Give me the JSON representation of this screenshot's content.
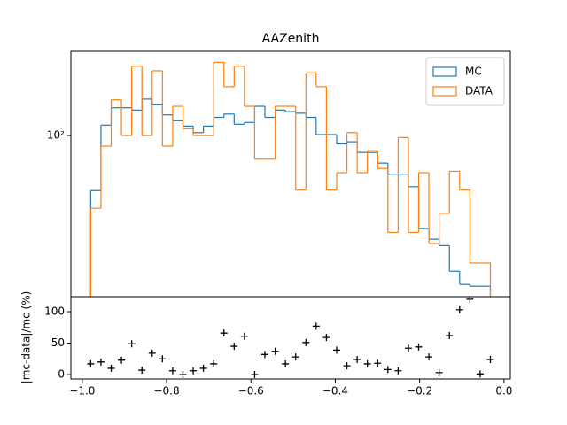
{
  "chart_data": [
    {
      "type": "histogram",
      "title": "AAZenith",
      "bins": [
        -0.98,
        -0.9557,
        -0.9314,
        -0.9071,
        -0.8828,
        -0.8585,
        -0.8342,
        -0.8099,
        -0.7856,
        -0.7613,
        -0.737,
        -0.7127,
        -0.6884,
        -0.6641,
        -0.6398,
        -0.6155,
        -0.5912,
        -0.5669,
        -0.5426,
        -0.5183,
        -0.494,
        -0.4697,
        -0.4454,
        -0.4211,
        -0.3968,
        -0.3725,
        -0.3482,
        -0.3239,
        -0.2996,
        -0.2753,
        -0.251,
        -0.2267,
        -0.2024,
        -0.1781,
        -0.1538,
        -0.1295,
        -0.1052,
        -0.0809,
        -0.0566,
        -0.0323
      ],
      "series": [
        {
          "name": "MC",
          "color": "#1f77b4",
          "values": [
            57.7,
            111,
            132,
            132,
            129,
            144,
            136,
            123,
            116,
            110,
            103,
            110,
            120,
            124,
            112,
            114,
            134,
            120,
            129,
            127,
            125,
            120,
            101,
            101,
            92,
            94,
            84.5,
            84.5,
            76,
            68,
            68,
            60,
            39.5,
            35.5,
            33.3,
            25.8,
            22.6,
            22.2,
            22.2
          ]
        },
        {
          "name": "DATA",
          "color": "#ff7f0e",
          "values": [
            48.4,
            90,
            143,
            100,
            200,
            100,
            191,
            90,
            134,
            107,
            100,
            100,
            208,
            163,
            200,
            134,
            79,
            79,
            134,
            134,
            58,
            187,
            163,
            58,
            69,
            103,
            69,
            86,
            72,
            38,
            98,
            38,
            69,
            34,
            46,
            70,
            58,
            28,
            28
          ]
        }
      ],
      "xlim": [
        -1.027,
        0.015
      ],
      "ylim": [
        20,
        232
      ],
      "log_scale": true,
      "yticks": [
        {
          "value": 100,
          "label": "10²"
        }
      ],
      "legend": "upper right"
    },
    {
      "type": "scatter",
      "ylabel": "|mc-data|/mc (%)",
      "color": "#000000",
      "x": [
        -0.98,
        -0.9557,
        -0.9314,
        -0.9071,
        -0.8828,
        -0.8585,
        -0.8342,
        -0.8099,
        -0.7856,
        -0.7613,
        -0.737,
        -0.7127,
        -0.6884,
        -0.6641,
        -0.6398,
        -0.6155,
        -0.5912,
        -0.5669,
        -0.5426,
        -0.5183,
        -0.494,
        -0.4697,
        -0.4454,
        -0.4211,
        -0.3968,
        -0.3725,
        -0.3482,
        -0.3239,
        -0.2996,
        -0.2753,
        -0.251,
        -0.2267,
        -0.2024,
        -0.1781,
        -0.1538,
        -0.1295,
        -0.1052,
        -0.0809,
        -0.0566,
        -0.0323
      ],
      "values": [
        17,
        20,
        10,
        23,
        49,
        7,
        34,
        25,
        6,
        0,
        6,
        10,
        17,
        66,
        45,
        61,
        0,
        32,
        37,
        17,
        28,
        51,
        77,
        59,
        39,
        14,
        24,
        17,
        18,
        8,
        6,
        42,
        44,
        28,
        3,
        62,
        103,
        120,
        1,
        24
      ],
      "xlim": [
        -1.027,
        0.015
      ],
      "ylim": [
        -7,
        124
      ],
      "yticks": [
        0,
        50,
        100
      ],
      "xticks": [
        {
          "value": -1.0,
          "label": "−1.0"
        },
        {
          "value": -0.8,
          "label": "−0.8"
        },
        {
          "value": -0.6,
          "label": "−0.6"
        },
        {
          "value": -0.4,
          "label": "−0.4"
        },
        {
          "value": -0.2,
          "label": "−0.2"
        },
        {
          "value": 0.0,
          "label": "0.0"
        }
      ]
    }
  ]
}
